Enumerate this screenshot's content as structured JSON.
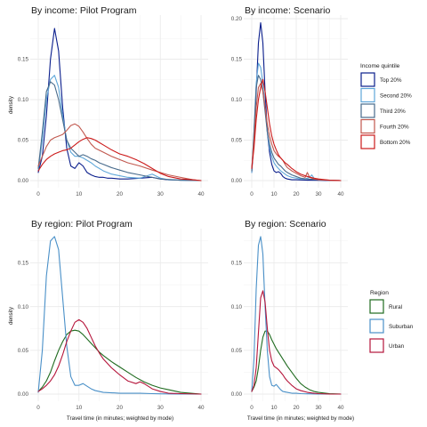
{
  "chart_data": [
    {
      "type": "line",
      "title": "By income: Pilot Program",
      "xlabel": "",
      "ylabel": "density",
      "xlim": [
        0,
        40
      ],
      "ylim": [
        0,
        0.2
      ],
      "xticks": [
        "0",
        "10",
        "20",
        "30",
        "40"
      ],
      "yticks": [
        "0.00",
        "0.05",
        "0.10",
        "0.15"
      ],
      "series": [
        {
          "name": "Top 20%",
          "color": "#0a1e8c",
          "x": [
            0,
            1,
            2,
            3,
            4,
            5,
            6,
            7,
            8,
            9,
            10,
            11,
            12,
            13,
            14,
            15,
            16,
            17,
            18,
            20,
            22,
            25,
            28,
            30,
            32,
            35,
            40
          ],
          "y": [
            0.01,
            0.03,
            0.08,
            0.15,
            0.188,
            0.16,
            0.09,
            0.04,
            0.018,
            0.015,
            0.022,
            0.018,
            0.01,
            0.007,
            0.005,
            0.004,
            0.004,
            0.003,
            0.003,
            0.002,
            0.002,
            0.003,
            0.004,
            0.002,
            0.001,
            0.0005,
            0
          ]
        },
        {
          "name": "Second 20%",
          "color": "#5fa7d9",
          "x": [
            0,
            1,
            2,
            3,
            4,
            5,
            6,
            7,
            8,
            9,
            10,
            11,
            12,
            13,
            14,
            16,
            18,
            20,
            22,
            25,
            28,
            30,
            32,
            35,
            40
          ],
          "y": [
            0.012,
            0.05,
            0.1,
            0.125,
            0.13,
            0.115,
            0.08,
            0.05,
            0.035,
            0.03,
            0.03,
            0.028,
            0.025,
            0.022,
            0.018,
            0.012,
            0.008,
            0.006,
            0.004,
            0.003,
            0.008,
            0.003,
            0.001,
            0.0005,
            0
          ]
        },
        {
          "name": "Third 20%",
          "color": "#486b8c",
          "x": [
            0,
            1,
            2,
            3,
            4,
            5,
            6,
            7,
            8,
            9,
            10,
            11,
            12,
            13,
            14,
            15,
            16,
            18,
            20,
            22,
            25,
            28,
            30,
            35,
            40
          ],
          "y": [
            0.015,
            0.06,
            0.11,
            0.122,
            0.118,
            0.1,
            0.075,
            0.05,
            0.04,
            0.035,
            0.03,
            0.032,
            0.03,
            0.027,
            0.025,
            0.022,
            0.02,
            0.016,
            0.013,
            0.01,
            0.007,
            0.004,
            0.002,
            0.0005,
            0
          ]
        },
        {
          "name": "Fourth 20%",
          "color": "#c1584e",
          "x": [
            0,
            1,
            2,
            3,
            4,
            5,
            6,
            7,
            8,
            9,
            10,
            11,
            12,
            13,
            14,
            16,
            18,
            20,
            22,
            25,
            28,
            30,
            32,
            35,
            38,
            40
          ],
          "y": [
            0.018,
            0.03,
            0.042,
            0.05,
            0.053,
            0.055,
            0.057,
            0.062,
            0.068,
            0.07,
            0.067,
            0.06,
            0.052,
            0.045,
            0.04,
            0.035,
            0.03,
            0.026,
            0.022,
            0.018,
            0.013,
            0.01,
            0.007,
            0.004,
            0.001,
            0
          ]
        },
        {
          "name": "Bottom 20%",
          "color": "#cc1a1a",
          "x": [
            0,
            1,
            2,
            3,
            4,
            5,
            6,
            7,
            8,
            9,
            10,
            11,
            12,
            13,
            14,
            15,
            16,
            18,
            20,
            22,
            24,
            26,
            28,
            30,
            32,
            35,
            38,
            40
          ],
          "y": [
            0.012,
            0.02,
            0.026,
            0.03,
            0.033,
            0.035,
            0.037,
            0.038,
            0.04,
            0.044,
            0.048,
            0.051,
            0.053,
            0.052,
            0.05,
            0.047,
            0.044,
            0.038,
            0.033,
            0.03,
            0.026,
            0.021,
            0.015,
            0.009,
            0.005,
            0.002,
            0.001,
            0
          ]
        }
      ]
    },
    {
      "type": "line",
      "title": "By income: Scenario",
      "xlabel": "",
      "ylabel": "",
      "xlim": [
        0,
        40
      ],
      "ylim": [
        0,
        0.2
      ],
      "xticks": [
        "0",
        "10",
        "20",
        "30",
        "40"
      ],
      "yticks": [
        "0.00",
        "0.05",
        "0.10",
        "0.15",
        "0.20"
      ],
      "series": [
        {
          "name": "Top 20%",
          "color": "#0a1e8c",
          "x": [
            0,
            1,
            2,
            3,
            4,
            5,
            6,
            7,
            8,
            9,
            10,
            11,
            12,
            13,
            14,
            15,
            16,
            18,
            20,
            25,
            30,
            35,
            40
          ],
          "y": [
            0.01,
            0.05,
            0.11,
            0.17,
            0.195,
            0.17,
            0.11,
            0.06,
            0.035,
            0.02,
            0.012,
            0.01,
            0.011,
            0.009,
            0.005,
            0.003,
            0.002,
            0.001,
            0.001,
            0.0005,
            0.0003,
            0,
            0
          ]
        },
        {
          "name": "Second 20%",
          "color": "#5fa7d9",
          "x": [
            0,
            1,
            2,
            3,
            4,
            5,
            6,
            7,
            8,
            9,
            10,
            11,
            12,
            13,
            14,
            15,
            16,
            18,
            20,
            22,
            24,
            26,
            27,
            28,
            30,
            35,
            40
          ],
          "y": [
            0.01,
            0.06,
            0.12,
            0.145,
            0.14,
            0.12,
            0.09,
            0.06,
            0.04,
            0.03,
            0.022,
            0.018,
            0.015,
            0.012,
            0.01,
            0.008,
            0.006,
            0.004,
            0.003,
            0.002,
            0.002,
            0.004,
            0.007,
            0.003,
            0.001,
            0.0003,
            0
          ]
        },
        {
          "name": "Third 20%",
          "color": "#486b8c",
          "x": [
            0,
            1,
            2,
            3,
            4,
            5,
            6,
            7,
            8,
            9,
            10,
            11,
            12,
            13,
            14,
            15,
            16,
            18,
            20,
            22,
            25,
            30,
            35,
            40
          ],
          "y": [
            0.012,
            0.06,
            0.115,
            0.13,
            0.125,
            0.11,
            0.085,
            0.06,
            0.045,
            0.035,
            0.028,
            0.024,
            0.02,
            0.018,
            0.015,
            0.012,
            0.01,
            0.007,
            0.005,
            0.003,
            0.002,
            0.001,
            0.0005,
            0
          ]
        },
        {
          "name": "Fourth 20%",
          "color": "#c1584e",
          "x": [
            0,
            1,
            2,
            3,
            4,
            5,
            6,
            7,
            8,
            9,
            10,
            11,
            12,
            13,
            14,
            15,
            16,
            18,
            20,
            22,
            24,
            25,
            26,
            28,
            30,
            35,
            40
          ],
          "y": [
            0.015,
            0.05,
            0.09,
            0.115,
            0.12,
            0.11,
            0.09,
            0.07,
            0.055,
            0.045,
            0.037,
            0.033,
            0.03,
            0.028,
            0.025,
            0.02,
            0.016,
            0.012,
            0.009,
            0.006,
            0.004,
            0.01,
            0.004,
            0.002,
            0.001,
            0.0003,
            0
          ]
        },
        {
          "name": "Bottom 20%",
          "color": "#cc1a1a",
          "x": [
            0,
            1,
            2,
            3,
            4,
            5,
            6,
            7,
            8,
            9,
            10,
            11,
            12,
            13,
            14,
            15,
            16,
            18,
            20,
            22,
            25,
            28,
            30,
            35,
            40
          ],
          "y": [
            0.015,
            0.04,
            0.075,
            0.1,
            0.115,
            0.125,
            0.11,
            0.09,
            0.07,
            0.055,
            0.045,
            0.038,
            0.032,
            0.028,
            0.025,
            0.022,
            0.02,
            0.015,
            0.011,
            0.008,
            0.005,
            0.003,
            0.002,
            0.0005,
            0
          ]
        }
      ]
    },
    {
      "type": "line",
      "title": "By region: Pilot Program",
      "xlabel": "Travel time (in minutes; weighted by mode)",
      "ylabel": "density",
      "xlim": [
        0,
        40
      ],
      "ylim": [
        0,
        0.185
      ],
      "xticks": [
        "0",
        "10",
        "20",
        "30",
        "40"
      ],
      "yticks": [
        "0.00",
        "0.05",
        "0.10",
        "0.15"
      ],
      "series": [
        {
          "name": "Rural",
          "color": "#1f6b1f",
          "x": [
            0,
            1,
            2,
            3,
            4,
            5,
            6,
            7,
            8,
            9,
            10,
            11,
            12,
            13,
            14,
            15,
            16,
            18,
            20,
            22,
            24,
            26,
            28,
            30,
            32,
            35,
            40
          ],
          "y": [
            0.003,
            0.008,
            0.015,
            0.025,
            0.038,
            0.05,
            0.06,
            0.068,
            0.072,
            0.073,
            0.072,
            0.068,
            0.063,
            0.058,
            0.053,
            0.048,
            0.044,
            0.037,
            0.031,
            0.025,
            0.019,
            0.014,
            0.01,
            0.007,
            0.005,
            0.002,
            0
          ]
        },
        {
          "name": "Suburban",
          "color": "#4a90c8",
          "x": [
            0,
            1,
            2,
            3,
            4,
            5,
            6,
            7,
            8,
            9,
            10,
            11,
            12,
            13,
            14,
            15,
            16,
            18,
            20,
            22,
            25,
            28,
            30,
            35,
            40
          ],
          "y": [
            0.002,
            0.05,
            0.135,
            0.175,
            0.18,
            0.165,
            0.11,
            0.055,
            0.02,
            0.01,
            0.01,
            0.012,
            0.009,
            0.006,
            0.004,
            0.003,
            0.002,
            0.0015,
            0.001,
            0.001,
            0.001,
            0.0005,
            0.0003,
            0,
            0
          ]
        },
        {
          "name": "Urban",
          "color": "#b5153b",
          "x": [
            0,
            1,
            2,
            3,
            4,
            5,
            6,
            7,
            8,
            9,
            10,
            11,
            12,
            13,
            14,
            15,
            16,
            18,
            20,
            22,
            24,
            25,
            26,
            28,
            30,
            32,
            35,
            40
          ],
          "y": [
            0.003,
            0.006,
            0.01,
            0.015,
            0.022,
            0.032,
            0.045,
            0.06,
            0.072,
            0.082,
            0.085,
            0.082,
            0.075,
            0.065,
            0.055,
            0.047,
            0.04,
            0.03,
            0.022,
            0.015,
            0.012,
            0.014,
            0.012,
            0.006,
            0.003,
            0.001,
            0.0005,
            0
          ]
        }
      ]
    },
    {
      "type": "line",
      "title": "By region: Scenario",
      "xlabel": "Travel time (in minutes; weighted by mode)",
      "ylabel": "",
      "xlim": [
        0,
        40
      ],
      "ylim": [
        0,
        0.185
      ],
      "xticks": [
        "0",
        "10",
        "20",
        "30",
        "40"
      ],
      "yticks": [
        "0.00",
        "0.05",
        "0.10",
        "0.15"
      ],
      "series": [
        {
          "name": "Rural",
          "color": "#1f6b1f",
          "x": [
            0,
            1,
            2,
            3,
            4,
            5,
            6,
            7,
            8,
            9,
            10,
            11,
            12,
            13,
            14,
            15,
            16,
            18,
            20,
            22,
            24,
            26,
            28,
            30,
            35,
            40
          ],
          "y": [
            0.003,
            0.008,
            0.015,
            0.03,
            0.05,
            0.065,
            0.072,
            0.072,
            0.068,
            0.062,
            0.057,
            0.052,
            0.048,
            0.044,
            0.04,
            0.036,
            0.032,
            0.025,
            0.018,
            0.012,
            0.008,
            0.005,
            0.003,
            0.002,
            0.0005,
            0
          ]
        },
        {
          "name": "Suburban",
          "color": "#4a90c8",
          "x": [
            0,
            1,
            2,
            3,
            4,
            5,
            6,
            7,
            8,
            9,
            10,
            11,
            12,
            13,
            14,
            16,
            18,
            20,
            22,
            25,
            30,
            35,
            40
          ],
          "y": [
            0.003,
            0.04,
            0.12,
            0.17,
            0.18,
            0.16,
            0.1,
            0.05,
            0.02,
            0.01,
            0.009,
            0.011,
            0.008,
            0.005,
            0.003,
            0.002,
            0.001,
            0.001,
            0.0005,
            0.0003,
            0.0001,
            0,
            0
          ]
        },
        {
          "name": "Urban",
          "color": "#b5153b",
          "x": [
            0,
            1,
            2,
            3,
            4,
            5,
            6,
            7,
            8,
            9,
            10,
            11,
            12,
            13,
            14,
            15,
            16,
            18,
            20,
            22,
            25,
            28,
            30,
            35,
            40
          ],
          "y": [
            0.003,
            0.01,
            0.03,
            0.07,
            0.11,
            0.118,
            0.105,
            0.075,
            0.05,
            0.038,
            0.032,
            0.03,
            0.028,
            0.025,
            0.022,
            0.018,
            0.015,
            0.01,
            0.006,
            0.004,
            0.002,
            0.001,
            0.0005,
            0.0001,
            0
          ]
        }
      ]
    }
  ],
  "legends": [
    {
      "title": "Income quintile",
      "items": [
        {
          "label": "Top 20%",
          "color": "#0a1e8c"
        },
        {
          "label": "Second 20%",
          "color": "#5fa7d9"
        },
        {
          "label": "Third 20%",
          "color": "#486b8c"
        },
        {
          "label": "Fourth 20%",
          "color": "#c1584e"
        },
        {
          "label": "Bottom 20%",
          "color": "#cc1a1a"
        }
      ]
    },
    {
      "title": "Region",
      "items": [
        {
          "label": "Rural",
          "color": "#1f6b1f"
        },
        {
          "label": "Suburban",
          "color": "#4a90c8"
        },
        {
          "label": "Urban",
          "color": "#b5153b"
        }
      ]
    }
  ]
}
